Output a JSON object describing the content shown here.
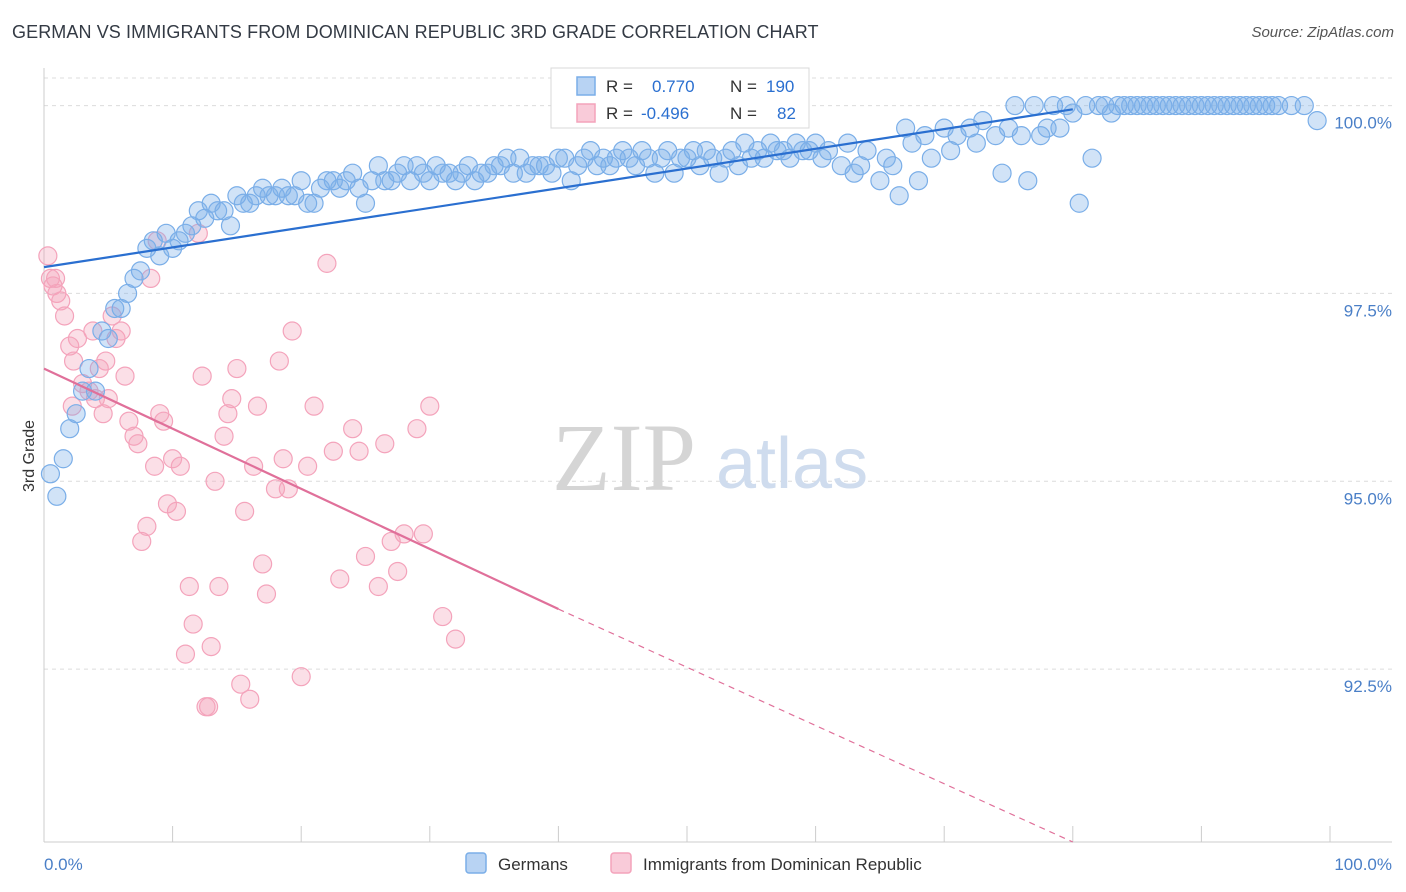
{
  "title": "GERMAN VS IMMIGRANTS FROM DOMINICAN REPUBLIC 3RD GRADE CORRELATION CHART",
  "source": "Source: ZipAtlas.com",
  "watermark": {
    "zip": "ZIP",
    "atlas": "atlas"
  },
  "colors": {
    "blue": "#7aaee8",
    "blue_line": "#2a6fd0",
    "pink": "#f4a3bb",
    "pink_line": "#e0709a",
    "tick": "#4a7fc7",
    "grid": "#dcdcdc"
  },
  "stats": {
    "r_label": "R =",
    "n_label": "N =",
    "blue": {
      "r": "0.770",
      "n": "190"
    },
    "pink": {
      "r": "-0.496",
      "n": "82"
    }
  },
  "chart_data": {
    "type": "scatter",
    "title": "GERMAN VS IMMIGRANTS FROM DOMINICAN REPUBLIC 3RD GRADE CORRELATION CHART",
    "xlabel": "",
    "ylabel": "3rd Grade",
    "xlim": [
      0,
      100
    ],
    "ylim": [
      90.2,
      100.5
    ],
    "x_tick_labels": [
      "0.0%",
      "100.0%"
    ],
    "y_ticks": [
      92.5,
      95.0,
      97.5,
      100.0
    ],
    "y_tick_labels": [
      "92.5%",
      "95.0%",
      "97.5%",
      "100.0%"
    ],
    "grid": true,
    "legend_position": "bottom-center",
    "series": [
      {
        "name": "Germans",
        "color": "#7aaee8",
        "trend": {
          "x": [
            0,
            80
          ],
          "y": [
            97.85,
            99.95
          ]
        },
        "points": [
          [
            0.5,
            95.1
          ],
          [
            1,
            94.8
          ],
          [
            1.5,
            95.3
          ],
          [
            2,
            95.7
          ],
          [
            2.5,
            95.9
          ],
          [
            3,
            96.2
          ],
          [
            3.5,
            96.5
          ],
          [
            4,
            96.2
          ],
          [
            4.5,
            97.0
          ],
          [
            5,
            96.9
          ],
          [
            5.5,
            97.3
          ],
          [
            6,
            97.3
          ],
          [
            6.5,
            97.5
          ],
          [
            7,
            97.7
          ],
          [
            7.5,
            97.8
          ],
          [
            8,
            98.1
          ],
          [
            8.5,
            98.2
          ],
          [
            9,
            98.0
          ],
          [
            9.5,
            98.3
          ],
          [
            10,
            98.1
          ],
          [
            10.5,
            98.2
          ],
          [
            11,
            98.3
          ],
          [
            11.5,
            98.4
          ],
          [
            12,
            98.6
          ],
          [
            12.5,
            98.5
          ],
          [
            13,
            98.7
          ],
          [
            13.5,
            98.6
          ],
          [
            14,
            98.6
          ],
          [
            14.5,
            98.4
          ],
          [
            15,
            98.8
          ],
          [
            15.5,
            98.7
          ],
          [
            16,
            98.7
          ],
          [
            16.5,
            98.8
          ],
          [
            17,
            98.9
          ],
          [
            17.5,
            98.8
          ],
          [
            18,
            98.8
          ],
          [
            18.5,
            98.9
          ],
          [
            19,
            98.8
          ],
          [
            19.5,
            98.8
          ],
          [
            20,
            99.0
          ],
          [
            20.5,
            98.7
          ],
          [
            21,
            98.7
          ],
          [
            21.5,
            98.9
          ],
          [
            22,
            99.0
          ],
          [
            22.5,
            99.0
          ],
          [
            23,
            98.9
          ],
          [
            23.5,
            99.0
          ],
          [
            24,
            99.1
          ],
          [
            24.5,
            98.9
          ],
          [
            25,
            98.7
          ],
          [
            25.5,
            99.0
          ],
          [
            26,
            99.2
          ],
          [
            26.5,
            99.0
          ],
          [
            27,
            99.0
          ],
          [
            27.5,
            99.1
          ],
          [
            28,
            99.2
          ],
          [
            28.5,
            99.0
          ],
          [
            29,
            99.2
          ],
          [
            29.5,
            99.1
          ],
          [
            30,
            99.0
          ],
          [
            30.5,
            99.2
          ],
          [
            31,
            99.1
          ],
          [
            31.5,
            99.1
          ],
          [
            32,
            99.0
          ],
          [
            32.5,
            99.1
          ],
          [
            33,
            99.2
          ],
          [
            33.5,
            99.0
          ],
          [
            34,
            99.1
          ],
          [
            34.5,
            99.1
          ],
          [
            35,
            99.2
          ],
          [
            35.5,
            99.2
          ],
          [
            36,
            99.3
          ],
          [
            36.5,
            99.1
          ],
          [
            37,
            99.3
          ],
          [
            37.5,
            99.1
          ],
          [
            38,
            99.2
          ],
          [
            38.5,
            99.2
          ],
          [
            39,
            99.2
          ],
          [
            39.5,
            99.1
          ],
          [
            40,
            99.3
          ],
          [
            40.5,
            99.3
          ],
          [
            41,
            99.0
          ],
          [
            41.5,
            99.2
          ],
          [
            42,
            99.3
          ],
          [
            42.5,
            99.4
          ],
          [
            43,
            99.2
          ],
          [
            43.5,
            99.3
          ],
          [
            44,
            99.2
          ],
          [
            44.5,
            99.3
          ],
          [
            45,
            99.4
          ],
          [
            45.5,
            99.3
          ],
          [
            46,
            99.2
          ],
          [
            46.5,
            99.4
          ],
          [
            47,
            99.3
          ],
          [
            47.5,
            99.1
          ],
          [
            48,
            99.3
          ],
          [
            48.5,
            99.4
          ],
          [
            49,
            99.1
          ],
          [
            49.5,
            99.3
          ],
          [
            50,
            99.3
          ],
          [
            50.5,
            99.4
          ],
          [
            51,
            99.2
          ],
          [
            51.5,
            99.4
          ],
          [
            52,
            99.3
          ],
          [
            52.5,
            99.1
          ],
          [
            53,
            99.3
          ],
          [
            53.5,
            99.4
          ],
          [
            54,
            99.2
          ],
          [
            54.5,
            99.5
          ],
          [
            55,
            99.3
          ],
          [
            55.5,
            99.4
          ],
          [
            56,
            99.3
          ],
          [
            56.5,
            99.5
          ],
          [
            57,
            99.4
          ],
          [
            57.5,
            99.4
          ],
          [
            58,
            99.3
          ],
          [
            58.5,
            99.5
          ],
          [
            59,
            99.4
          ],
          [
            59.5,
            99.4
          ],
          [
            60,
            99.5
          ],
          [
            60.5,
            99.3
          ],
          [
            61,
            99.4
          ],
          [
            62,
            99.2
          ],
          [
            62.5,
            99.5
          ],
          [
            63,
            99.1
          ],
          [
            63.5,
            99.2
          ],
          [
            64,
            99.4
          ],
          [
            65,
            99.0
          ],
          [
            65.5,
            99.3
          ],
          [
            66,
            99.2
          ],
          [
            66.5,
            98.8
          ],
          [
            67,
            99.7
          ],
          [
            67.5,
            99.5
          ],
          [
            68,
            99.0
          ],
          [
            68.5,
            99.6
          ],
          [
            69,
            99.3
          ],
          [
            70,
            99.7
          ],
          [
            70.5,
            99.4
          ],
          [
            71,
            99.6
          ],
          [
            72,
            99.7
          ],
          [
            72.5,
            99.5
          ],
          [
            73,
            99.8
          ],
          [
            74,
            99.6
          ],
          [
            74.5,
            99.1
          ],
          [
            75,
            99.7
          ],
          [
            75.5,
            100.0
          ],
          [
            76,
            99.6
          ],
          [
            76.5,
            99.0
          ],
          [
            77,
            100.0
          ],
          [
            77.5,
            99.6
          ],
          [
            78,
            99.7
          ],
          [
            78.5,
            100.0
          ],
          [
            79,
            99.7
          ],
          [
            79.5,
            100.0
          ],
          [
            80,
            99.9
          ],
          [
            80.5,
            98.7
          ],
          [
            81,
            100.0
          ],
          [
            81.5,
            99.3
          ],
          [
            82,
            100.0
          ],
          [
            82.5,
            100.0
          ],
          [
            83,
            99.9
          ],
          [
            83.5,
            100.0
          ],
          [
            84,
            100.0
          ],
          [
            84.5,
            100.0
          ],
          [
            85,
            100.0
          ],
          [
            85.5,
            100.0
          ],
          [
            86,
            100.0
          ],
          [
            86.5,
            100.0
          ],
          [
            87,
            100.0
          ],
          [
            87.5,
            100.0
          ],
          [
            88,
            100.0
          ],
          [
            88.5,
            100.0
          ],
          [
            89,
            100.0
          ],
          [
            89.5,
            100.0
          ],
          [
            90,
            100.0
          ],
          [
            90.5,
            100.0
          ],
          [
            91,
            100.0
          ],
          [
            91.5,
            100.0
          ],
          [
            92,
            100.0
          ],
          [
            92.5,
            100.0
          ],
          [
            93,
            100.0
          ],
          [
            93.5,
            100.0
          ],
          [
            94,
            100.0
          ],
          [
            94.5,
            100.0
          ],
          [
            95,
            100.0
          ],
          [
            95.5,
            100.0
          ],
          [
            96,
            100.0
          ],
          [
            97,
            100.0
          ],
          [
            99,
            99.8
          ],
          [
            98,
            100.0
          ]
        ]
      },
      {
        "name": "Immigrants from Dominican Republic",
        "color": "#f4a3bb",
        "trend": {
          "x": [
            0,
            40
          ],
          "y": [
            96.5,
            93.3
          ]
        },
        "trend_dashed": {
          "x": [
            40,
            80
          ],
          "y": [
            93.3,
            90.2
          ]
        },
        "points": [
          [
            0.3,
            98.0
          ],
          [
            0.5,
            97.7
          ],
          [
            0.7,
            97.6
          ],
          [
            1,
            97.5
          ],
          [
            1.3,
            97.4
          ],
          [
            1.6,
            97.2
          ],
          [
            2,
            96.8
          ],
          [
            2.3,
            96.6
          ],
          [
            2.6,
            96.9
          ],
          [
            3,
            96.3
          ],
          [
            3.5,
            96.2
          ],
          [
            3.8,
            97.0
          ],
          [
            4,
            96.1
          ],
          [
            4.3,
            96.5
          ],
          [
            4.6,
            95.9
          ],
          [
            5,
            96.1
          ],
          [
            5.3,
            97.2
          ],
          [
            5.6,
            96.9
          ],
          [
            6,
            97.0
          ],
          [
            6.3,
            96.4
          ],
          [
            6.6,
            95.8
          ],
          [
            7,
            95.6
          ],
          [
            7.3,
            95.5
          ],
          [
            7.6,
            94.2
          ],
          [
            8,
            94.4
          ],
          [
            8.3,
            97.7
          ],
          [
            8.6,
            95.2
          ],
          [
            9,
            95.9
          ],
          [
            9.3,
            95.8
          ],
          [
            9.6,
            94.7
          ],
          [
            10,
            95.3
          ],
          [
            10.3,
            94.6
          ],
          [
            10.6,
            95.2
          ],
          [
            11,
            92.7
          ],
          [
            11.3,
            93.6
          ],
          [
            11.6,
            93.1
          ],
          [
            12,
            98.3
          ],
          [
            12.3,
            96.4
          ],
          [
            12.6,
            92.0
          ],
          [
            13,
            92.8
          ],
          [
            13.3,
            95.0
          ],
          [
            13.6,
            93.6
          ],
          [
            14,
            95.6
          ],
          [
            14.3,
            95.9
          ],
          [
            14.6,
            96.1
          ],
          [
            15,
            96.5
          ],
          [
            15.3,
            92.3
          ],
          [
            15.6,
            94.6
          ],
          [
            16,
            92.1
          ],
          [
            16.3,
            95.2
          ],
          [
            16.6,
            96.0
          ],
          [
            17,
            93.9
          ],
          [
            17.3,
            93.5
          ],
          [
            18,
            94.9
          ],
          [
            18.3,
            96.6
          ],
          [
            18.6,
            95.3
          ],
          [
            19,
            94.9
          ],
          [
            19.3,
            97.0
          ],
          [
            20,
            92.4
          ],
          [
            20.5,
            95.2
          ],
          [
            21,
            96.0
          ],
          [
            22,
            97.9
          ],
          [
            22.5,
            95.4
          ],
          [
            23,
            93.7
          ],
          [
            24,
            95.7
          ],
          [
            24.5,
            95.4
          ],
          [
            25,
            94.0
          ],
          [
            26,
            93.6
          ],
          [
            26.5,
            95.5
          ],
          [
            27,
            94.2
          ],
          [
            27.5,
            93.8
          ],
          [
            28,
            94.3
          ],
          [
            29,
            95.7
          ],
          [
            29.5,
            94.3
          ],
          [
            30,
            96.0
          ],
          [
            31,
            93.2
          ],
          [
            32,
            92.9
          ],
          [
            8.8,
            98.2
          ],
          [
            2.2,
            96.0
          ],
          [
            4.8,
            96.6
          ],
          [
            0.9,
            97.7
          ],
          [
            12.8,
            92.0
          ]
        ]
      }
    ]
  }
}
